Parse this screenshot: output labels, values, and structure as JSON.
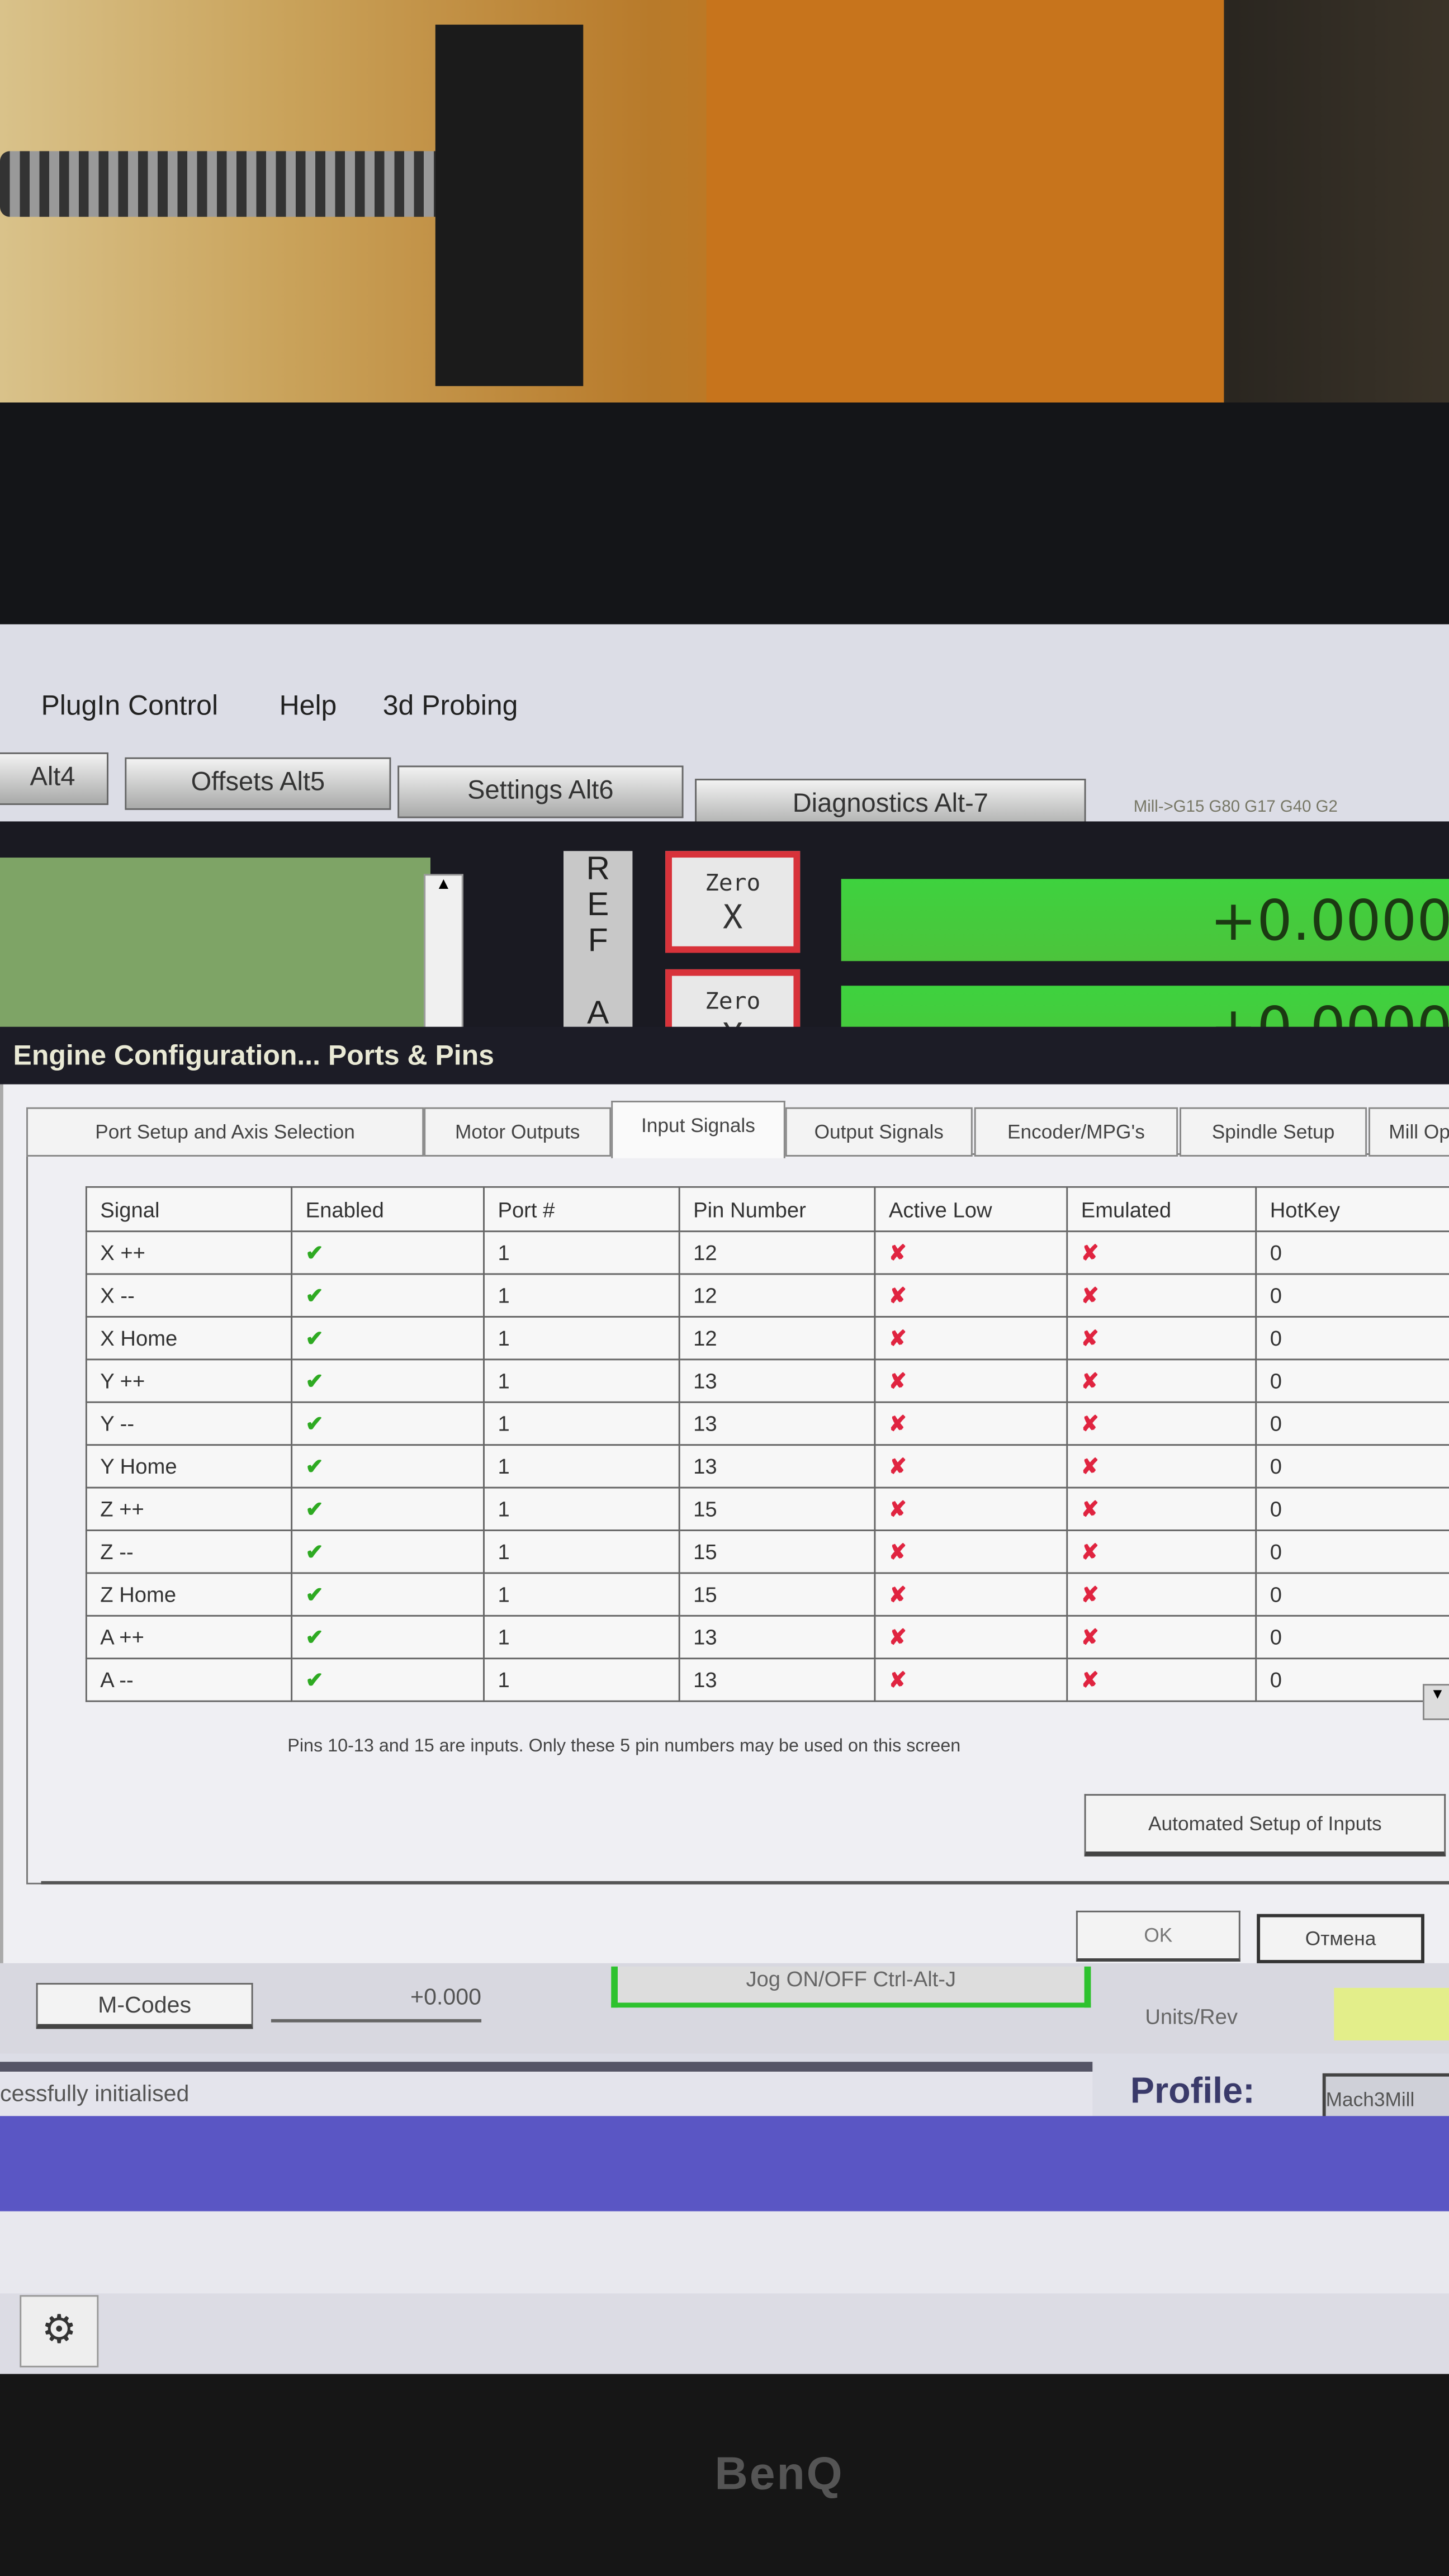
{
  "menu": [
    "PlugIn Control",
    "Help",
    "3d Probing"
  ],
  "screen_tabs": [
    "Alt4",
    "Offsets Alt5",
    "Settings Alt6",
    "Diagnostics Alt-7"
  ],
  "gcode_line": "Mill->G15 G80 G17 G40 G2",
  "ref_label": "REF A",
  "zero_x": {
    "line1": "Zero",
    "line2": "X"
  },
  "zero_y": {
    "line1": "Zero",
    "line2": "Y"
  },
  "dro": {
    "x": "+0.0000",
    "y": "+0.0000"
  },
  "dialog": {
    "title": "Engine Configuration... Ports & Pins",
    "tabs": [
      "Port Setup and Axis Selection",
      "Motor Outputs",
      "Input Signals",
      "Output Signals",
      "Encoder/MPG's",
      "Spindle Setup",
      "Mill Op"
    ],
    "active_tab": "Input Signals",
    "columns": [
      "Signal",
      "Enabled",
      "Port #",
      "Pin Number",
      "Active Low",
      "Emulated",
      "HotKey"
    ],
    "rows": [
      {
        "signal": "X ++",
        "enabled": true,
        "port": "1",
        "pin": "12",
        "active_low": false,
        "emulated": false,
        "hotkey": "0"
      },
      {
        "signal": "X --",
        "enabled": true,
        "port": "1",
        "pin": "12",
        "active_low": false,
        "emulated": false,
        "hotkey": "0"
      },
      {
        "signal": "X Home",
        "enabled": true,
        "port": "1",
        "pin": "12",
        "active_low": false,
        "emulated": false,
        "hotkey": "0"
      },
      {
        "signal": "Y ++",
        "enabled": true,
        "port": "1",
        "pin": "13",
        "active_low": false,
        "emulated": false,
        "hotkey": "0"
      },
      {
        "signal": "Y --",
        "enabled": true,
        "port": "1",
        "pin": "13",
        "active_low": false,
        "emulated": false,
        "hotkey": "0"
      },
      {
        "signal": "Y Home",
        "enabled": true,
        "port": "1",
        "pin": "13",
        "active_low": false,
        "emulated": false,
        "hotkey": "0"
      },
      {
        "signal": "Z ++",
        "enabled": true,
        "port": "1",
        "pin": "15",
        "active_low": false,
        "emulated": false,
        "hotkey": "0"
      },
      {
        "signal": "Z --",
        "enabled": true,
        "port": "1",
        "pin": "15",
        "active_low": false,
        "emulated": false,
        "hotkey": "0"
      },
      {
        "signal": "Z Home",
        "enabled": true,
        "port": "1",
        "pin": "15",
        "active_low": false,
        "emulated": false,
        "hotkey": "0"
      },
      {
        "signal": "A ++",
        "enabled": true,
        "port": "1",
        "pin": "13",
        "active_low": false,
        "emulated": false,
        "hotkey": "0"
      },
      {
        "signal": "A --",
        "enabled": true,
        "port": "1",
        "pin": "13",
        "active_low": false,
        "emulated": false,
        "hotkey": "0"
      }
    ],
    "note": "Pins 10-13 and 15 are inputs. Only these 5 pin numbers may be used on this screen",
    "automated_button": "Automated Setup of Inputs",
    "ok": "OK",
    "cancel": "Отмена"
  },
  "bottom": {
    "mcodes": "M-Codes",
    "value": "+0.000",
    "jog": "Jog ON/OFF Ctrl-Alt-J",
    "units_rev": "Units/Rev"
  },
  "status": {
    "message": "cessfully initialised",
    "profile_label": "Profile:",
    "profile_value": "Mach3Mill"
  },
  "monitor_brand": "BenQ",
  "icons": {
    "enabled": "check-icon",
    "disabled": "cross-icon"
  },
  "colors": {
    "check": "#2eaa22",
    "cross": "#e02440",
    "dro_green": "#3ed23e",
    "zero_border": "#d8323a"
  }
}
